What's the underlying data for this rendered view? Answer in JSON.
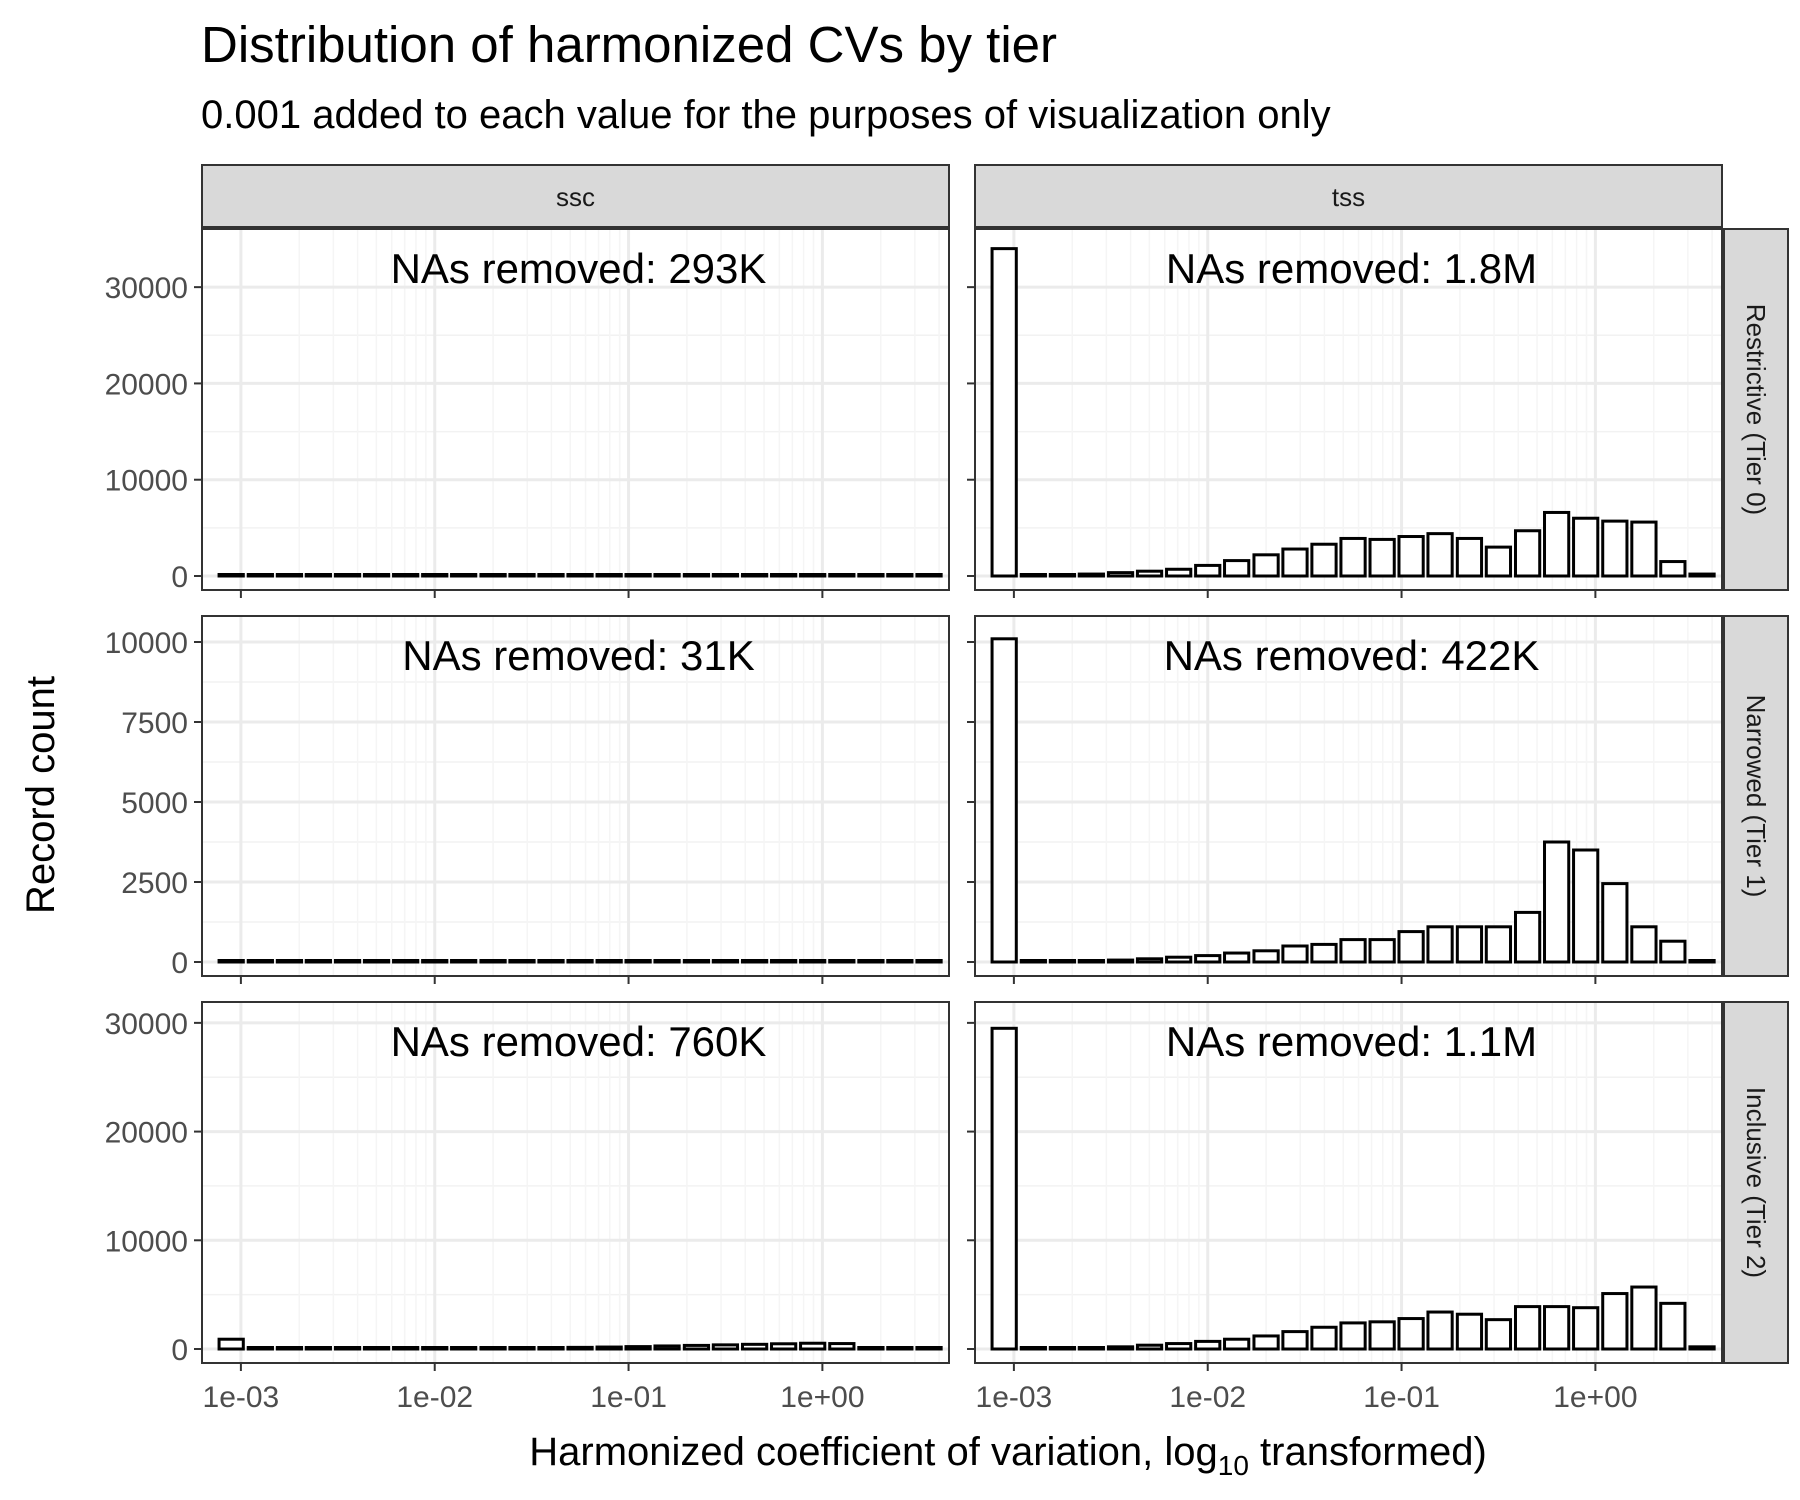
{
  "title": "Distribution of harmonized CVs by tier",
  "subtitle": "0.001 added to each value for the purposes of visualization only",
  "xlabel_main": "Harmonized coefficient of variation,  log",
  "xlabel_sub": "10",
  "xlabel_tail": "  transformed)",
  "ylabel": "Record count",
  "columns": [
    "ssc",
    "tss"
  ],
  "rows": [
    "Restrictive (Tier 0)",
    "Narrowed (Tier 1)",
    "Inclusive (Tier 2)"
  ],
  "x_ticks": [
    "1e-03",
    "1e-02",
    "1e-01",
    "1e+00"
  ],
  "chart_data": {
    "type": "bar",
    "facet_grid": true,
    "x_scale": "log10",
    "xlim": [
      0.00063,
      4.5
    ],
    "x_tick_values": [
      0.001,
      0.01,
      0.1,
      1
    ],
    "bin_centers": [
      0.000891,
      0.00126,
      0.00178,
      0.00251,
      0.00355,
      0.00501,
      0.00708,
      0.01,
      0.0141,
      0.02,
      0.0282,
      0.0398,
      0.0562,
      0.0794,
      0.112,
      0.158,
      0.224,
      0.316,
      0.447,
      0.631,
      0.891,
      1.26,
      1.78,
      2.51,
      3.55
    ],
    "grid": true,
    "panels": [
      {
        "row": "Restrictive (Tier 0)",
        "column": "ssc",
        "annotation": "NAs removed: 293K",
        "ylim": [
          0,
          35000
        ],
        "yticks": [
          0,
          10000,
          20000,
          30000
        ],
        "values": [
          100,
          30,
          20,
          15,
          10,
          8,
          8,
          8,
          8,
          8,
          8,
          8,
          8,
          8,
          8,
          8,
          8,
          8,
          8,
          8,
          8,
          8,
          5,
          5,
          5
        ]
      },
      {
        "row": "Restrictive (Tier 0)",
        "column": "tss",
        "annotation": "NAs removed: 1.8M",
        "ylim": [
          0,
          35000
        ],
        "yticks": [
          0,
          10000,
          20000,
          30000
        ],
        "values": [
          34000,
          50,
          100,
          200,
          350,
          500,
          700,
          1100,
          1600,
          2200,
          2800,
          3300,
          3900,
          3800,
          4100,
          4400,
          3900,
          3000,
          4700,
          6600,
          6000,
          5700,
          5600,
          1500,
          200
        ]
      },
      {
        "row": "Narrowed (Tier 1)",
        "column": "ssc",
        "annotation": "NAs removed: 31K",
        "ylim": [
          0,
          10500
        ],
        "yticks": [
          0,
          2500,
          5000,
          7500,
          10000
        ],
        "values": [
          5,
          5,
          5,
          5,
          5,
          5,
          5,
          5,
          5,
          5,
          5,
          5,
          5,
          5,
          5,
          5,
          5,
          5,
          5,
          5,
          5,
          5,
          5,
          5,
          5
        ]
      },
      {
        "row": "Narrowed (Tier 1)",
        "column": "tss",
        "annotation": "NAs removed: 422K",
        "ylim": [
          0,
          10500
        ],
        "yticks": [
          0,
          2500,
          5000,
          7500,
          10000
        ],
        "values": [
          10100,
          10,
          20,
          40,
          60,
          100,
          150,
          200,
          280,
          350,
          500,
          550,
          700,
          700,
          950,
          1100,
          1100,
          1100,
          1550,
          3750,
          3500,
          2450,
          1100,
          650,
          20
        ]
      },
      {
        "row": "Inclusive (Tier 2)",
        "column": "ssc",
        "annotation": "NAs removed: 760K",
        "ylim": [
          0,
          31000
        ],
        "yticks": [
          0,
          10000,
          20000,
          30000
        ],
        "values": [
          900,
          60,
          60,
          60,
          60,
          60,
          60,
          70,
          80,
          90,
          100,
          120,
          150,
          180,
          220,
          280,
          330,
          380,
          430,
          480,
          530,
          500,
          120,
          50,
          10
        ]
      },
      {
        "row": "Inclusive (Tier 2)",
        "column": "tss",
        "annotation": "NAs removed: 1.1M",
        "ylim": [
          0,
          31000
        ],
        "yticks": [
          0,
          10000,
          20000,
          30000
        ],
        "values": [
          29500,
          30,
          60,
          120,
          200,
          350,
          500,
          700,
          900,
          1200,
          1600,
          2000,
          2400,
          2500,
          2800,
          3400,
          3200,
          2700,
          3900,
          3900,
          3800,
          5100,
          5700,
          4200,
          200
        ]
      }
    ]
  }
}
